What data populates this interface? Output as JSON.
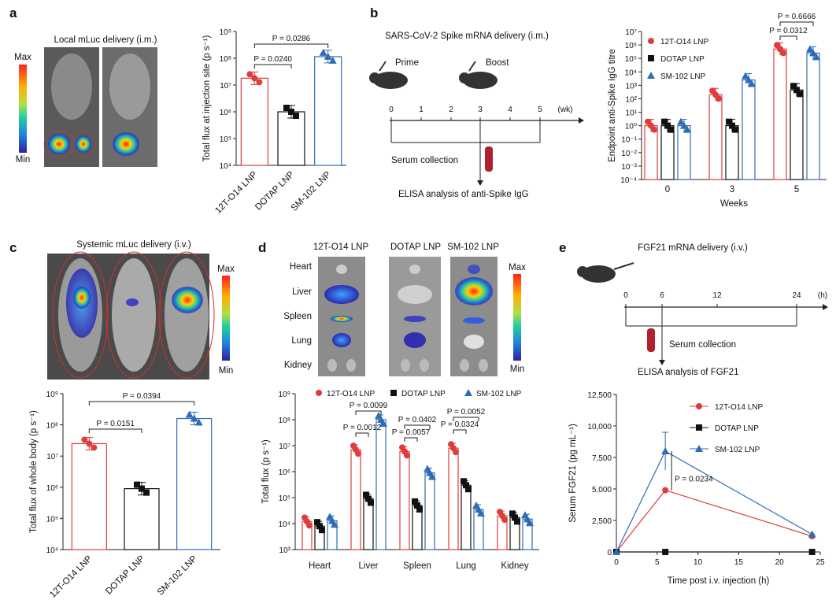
{
  "panel_letters": [
    "a",
    "b",
    "c",
    "d",
    "e"
  ],
  "colors": {
    "red": "#e03c3c",
    "black": "#111111",
    "blue": "#2e6db5"
  },
  "a": {
    "image_title": "Local mLuc delivery (i.m.)",
    "scale_max": "Max",
    "scale_min": "Min",
    "ylabel": "Total flux at injection site (p s⁻¹)",
    "sig": [
      {
        "p": "P = 0.0286"
      },
      {
        "p": "P = 0.0240"
      }
    ]
  },
  "b": {
    "scheme_title": "SARS-CoV-2 Spike mRNA delivery (i.m.)",
    "prime": "Prime",
    "boost": "Boost",
    "timeline": [
      "0",
      "1",
      "2",
      "3",
      "4",
      "5",
      "(wk)"
    ],
    "serum": "Serum collection",
    "elisa": "ELISA analysis of anti-Spike IgG",
    "sig": [
      {
        "p": "P = 0.6666"
      },
      {
        "p": "P = 0.0312"
      }
    ]
  },
  "c": {
    "image_title": "Systemic mLuc delivery (i.v.)",
    "scale_max": "Max",
    "scale_min": "Min",
    "sig": [
      {
        "p": "P = 0.0394"
      },
      {
        "p": "P = 0.0151"
      }
    ]
  },
  "d": {
    "organs_header": [
      "12T-O14 LNP",
      "DOTAP LNP",
      "SM-102 LNP"
    ],
    "organs": [
      "Heart",
      "Liver",
      "Spleen",
      "Lung",
      "Kidney"
    ],
    "scale_max": "Max",
    "scale_min": "Min",
    "sig": [
      {
        "p": "P = 0.0099"
      },
      {
        "p": "P = 0.0012"
      },
      {
        "p": "P = 0.0402"
      },
      {
        "p": "P = 0.0057"
      },
      {
        "p": "P = 0.0052"
      },
      {
        "p": "P = 0.0324"
      }
    ]
  },
  "e": {
    "scheme_title": "FGF21 mRNA delivery (i.v.)",
    "timeline": [
      "0",
      "6",
      "12",
      "24",
      "(h)"
    ],
    "serum": "Serum collection",
    "elisa": "ELISA analysis of FGF21",
    "sig": [
      {
        "p": "P = 0.0234"
      }
    ]
  },
  "chart_data": [
    {
      "id": "a",
      "type": "bar",
      "categories": [
        "12T-O14 LNP",
        "DOTAP LNP",
        "SM-102 LNP"
      ],
      "values": [
        18000000.0,
        1000000.0,
        115000000.0
      ],
      "ylabel": "Total flux at injection site (p s⁻¹)",
      "yscale": "log",
      "ylim": [
        10000.0,
        1000000000.0
      ],
      "colors": [
        "#e03c3c",
        "#111111",
        "#2e6db5"
      ]
    },
    {
      "id": "b",
      "type": "bar",
      "categories": [
        "0",
        "3",
        "5"
      ],
      "xlabel": "Weeks",
      "ylabel": "Endpoint anti-Spike IgG titre",
      "yscale": "log",
      "ylim": [
        0.0001,
        10000000.0
      ],
      "series": [
        {
          "name": "12T-O14 LNP",
          "values": [
            1,
            200,
            500000
          ]
        },
        {
          "name": "DOTAP LNP",
          "values": [
            1,
            1,
            450
          ]
        },
        {
          "name": "SM-102 LNP",
          "values": [
            1,
            2500,
            250000
          ]
        }
      ],
      "legend": "top-left"
    },
    {
      "id": "c",
      "type": "bar",
      "categories": [
        "12T-O14 LNP",
        "DOTAP LNP",
        "SM-102 LNP"
      ],
      "values": [
        25000000.0,
        900000.0,
        160000000.0
      ],
      "ylabel": "Total flux of whole body (p s⁻¹)",
      "yscale": "log",
      "ylim": [
        10000.0,
        1000000000.0
      ],
      "colors": [
        "#e03c3c",
        "#111111",
        "#2e6db5"
      ]
    },
    {
      "id": "d",
      "type": "bar",
      "categories": [
        "Heart",
        "Liver",
        "Spleen",
        "Lung",
        "Kidney"
      ],
      "ylabel": "Total flux (p s⁻¹)",
      "yscale": "log",
      "ylim": [
        1000.0,
        1000000000.0
      ],
      "series": [
        {
          "name": "12T-O14 LNP",
          "values": [
            12000,
            7000000,
            6000000,
            8000000,
            20000
          ]
        },
        {
          "name": "DOTAP LNP",
          "values": [
            8000,
            90000,
            50000,
            300000,
            17000
          ]
        },
        {
          "name": "SM-102 LNP",
          "values": [
            13000,
            100000000,
            900000,
            35000,
            15000
          ]
        }
      ],
      "legend": "top"
    },
    {
      "id": "e",
      "type": "line",
      "xlabel": "Time post i.v. injection (h)",
      "ylabel": "Serum FGF21 (pg mL⁻¹)",
      "xlim": [
        0,
        25
      ],
      "ylim": [
        0,
        12500
      ],
      "xticks": [
        "0",
        "5",
        "10",
        "15",
        "20",
        "25"
      ],
      "yticks": [
        "0",
        "2,500",
        "5,000",
        "7,500",
        "10,000",
        "12,500"
      ],
      "series": [
        {
          "name": "12T-O14 LNP",
          "x": [
            0,
            6,
            24
          ],
          "y": [
            0,
            4900,
            1250
          ]
        },
        {
          "name": "DOTAP LNP",
          "x": [
            0,
            6,
            24
          ],
          "y": [
            0,
            0,
            0
          ]
        },
        {
          "name": "SM-102 LNP",
          "x": [
            0,
            6,
            24
          ],
          "y": [
            0,
            8000,
            1400
          ]
        }
      ],
      "legend": "top-right"
    }
  ]
}
